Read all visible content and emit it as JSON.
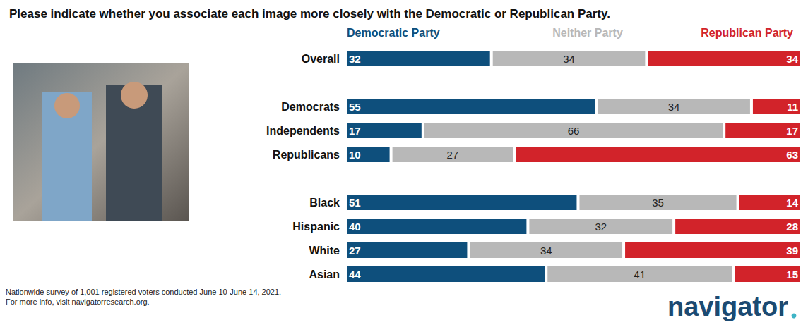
{
  "chart_data": {
    "type": "bar",
    "orientation": "horizontal",
    "stacked": true,
    "data_labels": true,
    "tick_labels": "y",
    "grid": false,
    "legend": "top",
    "title": "Please indicate whether you associate each image more closely with the Democratic or Republican Party.",
    "categories": [
      "Overall",
      null,
      "Democrats",
      "Independents",
      "Republicans",
      null,
      "Black",
      "Hispanic",
      "White",
      "Asian"
    ],
    "series": [
      {
        "name": "Democratic Party",
        "color": "#0e4f7c",
        "values": [
          32,
          null,
          55,
          17,
          10,
          null,
          51,
          40,
          27,
          44
        ]
      },
      {
        "name": "Neither Party",
        "color": "#b8b8b8",
        "values": [
          34,
          null,
          34,
          66,
          27,
          null,
          35,
          32,
          34,
          41
        ]
      },
      {
        "name": "Republican Party",
        "color": "#d2232a",
        "values": [
          34,
          null,
          11,
          17,
          63,
          null,
          14,
          28,
          39,
          15
        ]
      }
    ],
    "xlim": [
      0,
      100
    ],
    "notes": [
      "Nationwide survey of 1,001 registered voters conducted June 10-June 14, 2021.",
      "For more info, visit navigatorresearch.org."
    ],
    "logo": "navigator"
  }
}
